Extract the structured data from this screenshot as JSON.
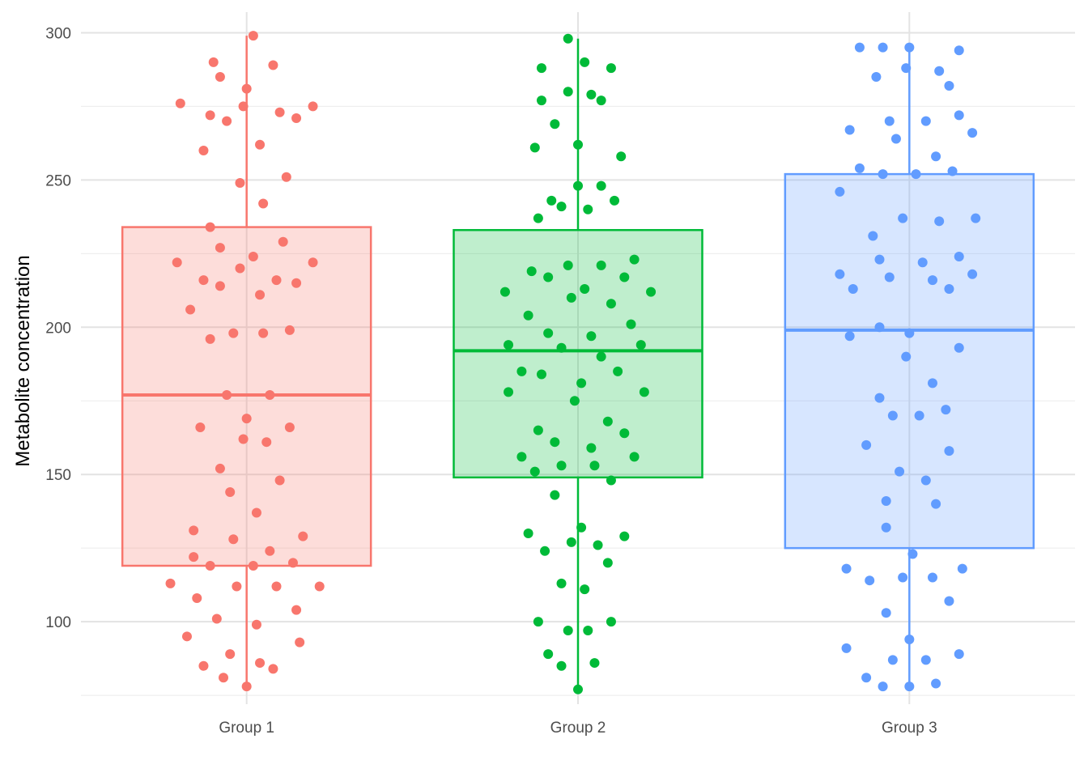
{
  "chart_data": {
    "type": "box",
    "title": "",
    "xlabel": "",
    "ylabel": "Metabolite concentration",
    "ylim": [
      72,
      307
    ],
    "yticks": [
      100,
      150,
      200,
      250,
      300
    ],
    "grid": true,
    "legend": "none",
    "categories": [
      "Group 1",
      "Group 2",
      "Group 3"
    ],
    "series": [
      {
        "color": "#F8766D",
        "box": {
          "min": 78,
          "q1": 119,
          "median": 177,
          "q3": 234,
          "max": 299
        },
        "points": [
          [
            0.02,
            299
          ],
          [
            -0.1,
            290
          ],
          [
            0.08,
            289
          ],
          [
            -0.08,
            285
          ],
          [
            0.0,
            281
          ],
          [
            -0.2,
            276
          ],
          [
            -0.01,
            275
          ],
          [
            0.2,
            275
          ],
          [
            0.1,
            273
          ],
          [
            -0.11,
            272
          ],
          [
            0.15,
            271
          ],
          [
            -0.06,
            270
          ],
          [
            0.04,
            262
          ],
          [
            -0.13,
            260
          ],
          [
            0.12,
            251
          ],
          [
            -0.02,
            249
          ],
          [
            0.05,
            242
          ],
          [
            -0.11,
            234
          ],
          [
            0.11,
            229
          ],
          [
            -0.08,
            227
          ],
          [
            0.02,
            224
          ],
          [
            -0.21,
            222
          ],
          [
            0.2,
            222
          ],
          [
            -0.02,
            220
          ],
          [
            -0.13,
            216
          ],
          [
            0.09,
            216
          ],
          [
            0.15,
            215
          ],
          [
            -0.08,
            214
          ],
          [
            0.04,
            211
          ],
          [
            -0.17,
            206
          ],
          [
            0.13,
            199
          ],
          [
            -0.04,
            198
          ],
          [
            0.05,
            198
          ],
          [
            -0.11,
            196
          ],
          [
            -0.06,
            177
          ],
          [
            0.07,
            177
          ],
          [
            0.0,
            169
          ],
          [
            -0.14,
            166
          ],
          [
            0.13,
            166
          ],
          [
            -0.01,
            162
          ],
          [
            0.06,
            161
          ],
          [
            -0.08,
            152
          ],
          [
            0.1,
            148
          ],
          [
            -0.05,
            144
          ],
          [
            0.03,
            137
          ],
          [
            -0.16,
            131
          ],
          [
            0.17,
            129
          ],
          [
            -0.04,
            128
          ],
          [
            0.07,
            124
          ],
          [
            -0.16,
            122
          ],
          [
            0.14,
            120
          ],
          [
            -0.11,
            119
          ],
          [
            0.02,
            119
          ],
          [
            -0.03,
            112
          ],
          [
            0.09,
            112
          ],
          [
            -0.23,
            113
          ],
          [
            0.22,
            112
          ],
          [
            -0.15,
            108
          ],
          [
            0.15,
            104
          ],
          [
            -0.09,
            101
          ],
          [
            0.03,
            99
          ],
          [
            -0.18,
            95
          ],
          [
            0.16,
            93
          ],
          [
            -0.05,
            89
          ],
          [
            0.04,
            86
          ],
          [
            -0.13,
            85
          ],
          [
            0.08,
            84
          ],
          [
            -0.07,
            81
          ],
          [
            0.0,
            78
          ]
        ]
      },
      {
        "color": "#00BA38",
        "box": {
          "min": 77,
          "q1": 149,
          "median": 192,
          "q3": 233,
          "max": 298
        },
        "points": [
          [
            -0.03,
            298
          ],
          [
            0.02,
            290
          ],
          [
            -0.11,
            288
          ],
          [
            0.1,
            288
          ],
          [
            -0.03,
            280
          ],
          [
            0.04,
            279
          ],
          [
            -0.11,
            277
          ],
          [
            0.07,
            277
          ],
          [
            -0.07,
            269
          ],
          [
            0.0,
            262
          ],
          [
            -0.13,
            261
          ],
          [
            0.13,
            258
          ],
          [
            0.0,
            248
          ],
          [
            0.07,
            248
          ],
          [
            -0.08,
            243
          ],
          [
            0.11,
            243
          ],
          [
            -0.05,
            241
          ],
          [
            0.03,
            240
          ],
          [
            -0.12,
            237
          ],
          [
            0.17,
            223
          ],
          [
            -0.14,
            219
          ],
          [
            -0.03,
            221
          ],
          [
            0.07,
            221
          ],
          [
            -0.09,
            217
          ],
          [
            0.14,
            217
          ],
          [
            -0.22,
            212
          ],
          [
            0.22,
            212
          ],
          [
            0.02,
            213
          ],
          [
            -0.02,
            210
          ],
          [
            0.1,
            208
          ],
          [
            -0.15,
            204
          ],
          [
            0.16,
            201
          ],
          [
            -0.09,
            198
          ],
          [
            0.04,
            197
          ],
          [
            -0.21,
            194
          ],
          [
            0.19,
            194
          ],
          [
            -0.05,
            193
          ],
          [
            0.07,
            190
          ],
          [
            -0.17,
            185
          ],
          [
            0.12,
            185
          ],
          [
            -0.11,
            184
          ],
          [
            0.01,
            181
          ],
          [
            -0.21,
            178
          ],
          [
            0.2,
            178
          ],
          [
            -0.01,
            175
          ],
          [
            0.09,
            168
          ],
          [
            -0.12,
            165
          ],
          [
            0.14,
            164
          ],
          [
            -0.07,
            161
          ],
          [
            0.04,
            159
          ],
          [
            -0.17,
            156
          ],
          [
            0.17,
            156
          ],
          [
            -0.05,
            153
          ],
          [
            0.05,
            153
          ],
          [
            -0.13,
            151
          ],
          [
            0.1,
            148
          ],
          [
            -0.07,
            143
          ],
          [
            0.01,
            132
          ],
          [
            -0.15,
            130
          ],
          [
            0.14,
            129
          ],
          [
            -0.02,
            127
          ],
          [
            0.06,
            126
          ],
          [
            -0.1,
            124
          ],
          [
            0.09,
            120
          ],
          [
            -0.05,
            113
          ],
          [
            0.02,
            111
          ],
          [
            -0.12,
            100
          ],
          [
            0.1,
            100
          ],
          [
            -0.03,
            97
          ],
          [
            0.03,
            97
          ],
          [
            -0.09,
            89
          ],
          [
            0.05,
            86
          ],
          [
            -0.05,
            85
          ],
          [
            0.0,
            77
          ]
        ]
      },
      {
        "color": "#619CFF",
        "box": {
          "min": 78,
          "q1": 125,
          "median": 199,
          "q3": 252,
          "max": 296
        },
        "points": [
          [
            -0.15,
            295
          ],
          [
            -0.08,
            295
          ],
          [
            0.0,
            295
          ],
          [
            0.15,
            294
          ],
          [
            -0.01,
            288
          ],
          [
            0.09,
            287
          ],
          [
            -0.1,
            285
          ],
          [
            0.12,
            282
          ],
          [
            -0.06,
            270
          ],
          [
            0.05,
            270
          ],
          [
            0.15,
            272
          ],
          [
            -0.18,
            267
          ],
          [
            0.19,
            266
          ],
          [
            -0.04,
            264
          ],
          [
            0.08,
            258
          ],
          [
            -0.15,
            254
          ],
          [
            -0.08,
            252
          ],
          [
            0.02,
            252
          ],
          [
            0.13,
            253
          ],
          [
            -0.21,
            246
          ],
          [
            -0.02,
            237
          ],
          [
            0.09,
            236
          ],
          [
            0.2,
            237
          ],
          [
            -0.11,
            231
          ],
          [
            -0.09,
            223
          ],
          [
            0.04,
            222
          ],
          [
            0.15,
            224
          ],
          [
            -0.21,
            218
          ],
          [
            0.19,
            218
          ],
          [
            -0.06,
            217
          ],
          [
            0.07,
            216
          ],
          [
            -0.17,
            213
          ],
          [
            0.12,
            213
          ],
          [
            -0.09,
            200
          ],
          [
            0.0,
            198
          ],
          [
            -0.18,
            197
          ],
          [
            0.15,
            193
          ],
          [
            -0.01,
            190
          ],
          [
            0.07,
            181
          ],
          [
            -0.09,
            176
          ],
          [
            -0.05,
            170
          ],
          [
            0.03,
            170
          ],
          [
            0.11,
            172
          ],
          [
            -0.13,
            160
          ],
          [
            0.12,
            158
          ],
          [
            -0.03,
            151
          ],
          [
            0.05,
            148
          ],
          [
            -0.07,
            141
          ],
          [
            0.08,
            140
          ],
          [
            -0.07,
            132
          ],
          [
            0.01,
            123
          ],
          [
            -0.19,
            118
          ],
          [
            0.16,
            118
          ],
          [
            -0.12,
            114
          ],
          [
            -0.02,
            115
          ],
          [
            0.07,
            115
          ],
          [
            0.12,
            107
          ],
          [
            -0.07,
            103
          ],
          [
            0.0,
            94
          ],
          [
            -0.19,
            91
          ],
          [
            0.15,
            89
          ],
          [
            -0.05,
            87
          ],
          [
            0.05,
            87
          ],
          [
            -0.13,
            81
          ],
          [
            -0.08,
            78
          ],
          [
            0.0,
            78
          ],
          [
            0.08,
            79
          ]
        ]
      }
    ]
  }
}
